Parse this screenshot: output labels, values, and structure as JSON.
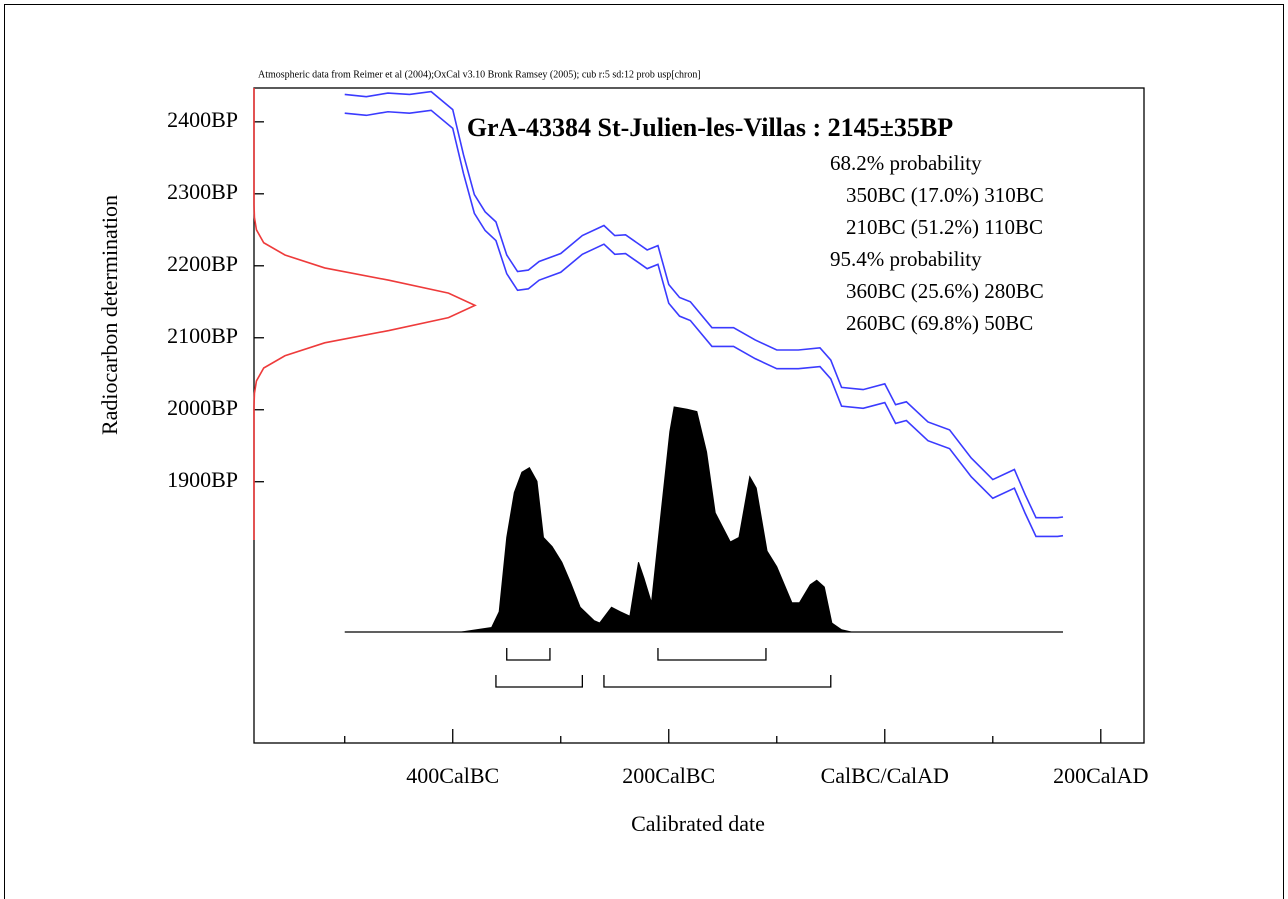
{
  "chart_data": {
    "type": "calibration",
    "header": "Atmospheric data from Reimer et al (2004);OxCal v3.10 Bronk Ramsey (2005); cub r:5 sd:12 prob usp[chron]",
    "title": "GrA-43384 St-Julien-les-Villas : 2145±35BP",
    "xlabel": "Calibrated date",
    "ylabel": "Radiocarbon determination",
    "xlim": [
      -584,
      240
    ],
    "xticks": [
      {
        "value": -400,
        "label": "400CalBC"
      },
      {
        "value": -200,
        "label": "200CalBC"
      },
      {
        "value": 0,
        "label": "CalBC/CalAD"
      },
      {
        "value": 200,
        "label": "200CalAD"
      }
    ],
    "xminor_ticks": [
      -500,
      -300,
      -100,
      100
    ],
    "ylim": [
      1537,
      2447
    ],
    "yticks": [
      {
        "value": 2400,
        "label": "2400BP"
      },
      {
        "value": 2300,
        "label": "2300BP"
      },
      {
        "value": 2200,
        "label": "2200BP"
      },
      {
        "value": 2100,
        "label": "2100BP"
      },
      {
        "value": 2000,
        "label": "2000BP"
      },
      {
        "value": 1900,
        "label": "1900BP"
      }
    ],
    "ranges": [
      {
        "label": "68.2% probability",
        "lines": [
          "350BC (17.0%) 310BC",
          "210BC (51.2%) 110BC"
        ],
        "intervals": [
          [
            -350,
            -310
          ],
          [
            -210,
            -110
          ]
        ]
      },
      {
        "label": "95.4% probability",
        "lines": [
          "360BC (25.6%) 280BC",
          "260BC (69.8%) 50BC"
        ],
        "intervals": [
          [
            -360,
            -280
          ],
          [
            -260,
            -50
          ]
        ]
      }
    ],
    "calibration_curve": {
      "x": [
        -500,
        -480,
        -460,
        -440,
        -420,
        -400,
        -390,
        -380,
        -370,
        -360,
        -350,
        -340,
        -330,
        -320,
        -300,
        -280,
        -260,
        -250,
        -240,
        -220,
        -210,
        -200,
        -190,
        -180,
        -160,
        -140,
        -120,
        -100,
        -80,
        -60,
        -50,
        -40,
        -20,
        0,
        10,
        20,
        40,
        60,
        80,
        100,
        120,
        130,
        140,
        160,
        165
      ],
      "series": [
        {
          "color": "#3b3bff",
          "values": [
            2438,
            2435,
            2440,
            2438,
            2442,
            2417,
            2354,
            2299,
            2275,
            2261,
            2215,
            2192,
            2194,
            2206,
            2217,
            2242,
            2256,
            2242,
            2243,
            2222,
            2228,
            2174,
            2156,
            2150,
            2114,
            2114,
            2097,
            2083,
            2083,
            2086,
            2069,
            2031,
            2028,
            2036,
            2007,
            2011,
            1983,
            1972,
            1933,
            1903,
            1917,
            1882,
            1850,
            1850,
            1851
          ]
        },
        {
          "color": "#3b3bff",
          "values": [
            2412,
            2409,
            2414,
            2412,
            2416,
            2391,
            2328,
            2273,
            2249,
            2235,
            2189,
            2166,
            2168,
            2180,
            2191,
            2216,
            2230,
            2216,
            2217,
            2196,
            2202,
            2148,
            2130,
            2124,
            2088,
            2088,
            2071,
            2057,
            2057,
            2060,
            2043,
            2005,
            2002,
            2010,
            1981,
            1985,
            1957,
            1946,
            1907,
            1877,
            1891,
            1856,
            1824,
            1824,
            1825
          ]
        }
      ]
    },
    "measurement": {
      "color": "#ee3b3b",
      "bp": [
        2447,
        2285,
        2267,
        2250,
        2232,
        2215,
        2197,
        2180,
        2162,
        2145,
        2128,
        2110,
        2093,
        2075,
        2058,
        2040,
        2023,
        2005,
        1819
      ],
      "density": [
        0,
        0,
        0.002,
        0.011,
        0.044,
        0.14,
        0.32,
        0.61,
        0.88,
        1,
        0.88,
        0.61,
        0.32,
        0.14,
        0.044,
        0.011,
        0.002,
        0,
        0
      ]
    },
    "posterior": {
      "color": "#000000",
      "x": [
        -392,
        -364,
        -357,
        -350,
        -343,
        -336,
        -329,
        -322,
        -316,
        -308,
        -299,
        -291,
        -282,
        -269,
        -264,
        -253,
        -245,
        -236,
        -228,
        -223,
        -216,
        -206,
        -199,
        -195,
        -183,
        -174,
        -165,
        -157,
        -143,
        -135,
        -125,
        -119,
        -109,
        -100,
        -86,
        -79,
        -69,
        -63,
        -56,
        -49,
        -40,
        -31
      ],
      "values": [
        0,
        2,
        9,
        42,
        62,
        71,
        73,
        67,
        42,
        38,
        31,
        22,
        11,
        5,
        4,
        11,
        9,
        7,
        31,
        24,
        13,
        58,
        89,
        100,
        99,
        98,
        80,
        53,
        40,
        42,
        69,
        64,
        36,
        29,
        13,
        13,
        21,
        23,
        20,
        4,
        1,
        0
      ]
    }
  }
}
